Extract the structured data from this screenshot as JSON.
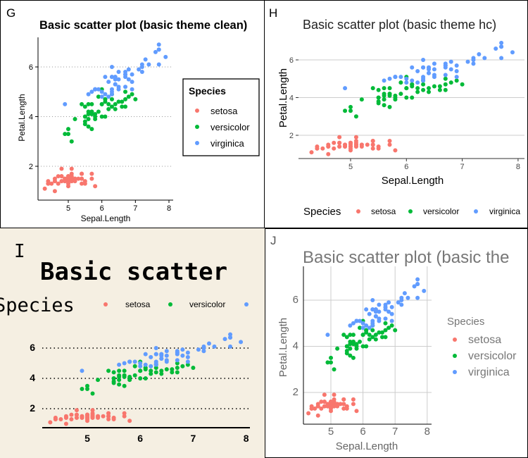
{
  "chart_data": [
    {
      "panel": "G",
      "type": "scatter",
      "title": "Basic scatter plot (basic theme clean)",
      "xlabel": "Sepal.Length",
      "ylabel": "Petal.Length",
      "xticks": [
        "5",
        "6",
        "7",
        "8"
      ],
      "yticks": [
        "2",
        "4",
        "6"
      ],
      "legend_title": "Species",
      "legend_position": "right",
      "grid": "horizontal-dotted"
    },
    {
      "panel": "H",
      "type": "scatter",
      "title": "Basic scatter plot (basic theme hc)",
      "xlabel": "Sepal.Length",
      "ylabel": "Petal.Length",
      "xticks": [
        "5",
        "6",
        "7",
        "8"
      ],
      "yticks": [
        "2",
        "4",
        "6"
      ],
      "legend_title": "Species",
      "legend_position": "bottom",
      "grid": "horizontal"
    },
    {
      "panel": "I",
      "type": "scatter",
      "title": "Basic scatter",
      "xlabel": "",
      "ylabel": "",
      "xticks": [
        "5",
        "6",
        "7",
        "8"
      ],
      "yticks": [
        "2",
        "4",
        "6"
      ],
      "legend_title": "Species",
      "legend_position": "top",
      "grid": "horizontal-dotted"
    },
    {
      "panel": "J",
      "type": "scatter",
      "title": "Basic scatter plot (basic the",
      "xlabel": "Sepal.Length",
      "ylabel": "Petal.Length",
      "xticks": [
        "5",
        "6",
        "7",
        "8"
      ],
      "yticks": [
        "2",
        "4",
        "6"
      ],
      "legend_title": "Species",
      "legend_position": "right",
      "grid": "major"
    }
  ],
  "series": [
    {
      "name": "setosa",
      "color": "#f8766d",
      "points": [
        [
          5.1,
          1.4
        ],
        [
          4.9,
          1.4
        ],
        [
          4.7,
          1.3
        ],
        [
          4.6,
          1.5
        ],
        [
          5.0,
          1.4
        ],
        [
          5.4,
          1.7
        ],
        [
          4.6,
          1.4
        ],
        [
          5.0,
          1.5
        ],
        [
          4.4,
          1.4
        ],
        [
          4.9,
          1.5
        ],
        [
          5.4,
          1.5
        ],
        [
          4.8,
          1.6
        ],
        [
          4.8,
          1.4
        ],
        [
          4.3,
          1.1
        ],
        [
          5.8,
          1.2
        ],
        [
          5.7,
          1.5
        ],
        [
          5.4,
          1.3
        ],
        [
          5.1,
          1.4
        ],
        [
          5.7,
          1.7
        ],
        [
          5.1,
          1.5
        ],
        [
          5.4,
          1.7
        ],
        [
          5.1,
          1.5
        ],
        [
          4.6,
          1.0
        ],
        [
          5.1,
          1.7
        ],
        [
          4.8,
          1.9
        ],
        [
          5.0,
          1.6
        ],
        [
          5.0,
          1.6
        ],
        [
          5.2,
          1.5
        ],
        [
          5.2,
          1.4
        ],
        [
          4.7,
          1.6
        ],
        [
          4.8,
          1.6
        ],
        [
          5.4,
          1.5
        ],
        [
          5.2,
          1.5
        ],
        [
          5.5,
          1.4
        ],
        [
          4.9,
          1.5
        ],
        [
          5.0,
          1.2
        ],
        [
          5.5,
          1.3
        ],
        [
          4.9,
          1.4
        ],
        [
          4.4,
          1.3
        ],
        [
          5.1,
          1.5
        ],
        [
          5.0,
          1.3
        ],
        [
          4.5,
          1.3
        ],
        [
          4.4,
          1.3
        ],
        [
          5.0,
          1.6
        ],
        [
          5.1,
          1.9
        ],
        [
          4.8,
          1.4
        ],
        [
          5.1,
          1.6
        ],
        [
          4.6,
          1.4
        ],
        [
          5.3,
          1.5
        ],
        [
          5.0,
          1.4
        ]
      ]
    },
    {
      "name": "versicolor",
      "color": "#00ba38",
      "points": [
        [
          7.0,
          4.7
        ],
        [
          6.4,
          4.5
        ],
        [
          6.9,
          4.9
        ],
        [
          5.5,
          4.0
        ],
        [
          6.5,
          4.6
        ],
        [
          5.7,
          4.5
        ],
        [
          6.3,
          4.7
        ],
        [
          4.9,
          3.3
        ],
        [
          6.6,
          4.6
        ],
        [
          5.2,
          3.9
        ],
        [
          5.0,
          3.5
        ],
        [
          5.9,
          4.2
        ],
        [
          6.0,
          4.0
        ],
        [
          6.1,
          4.7
        ],
        [
          5.6,
          3.6
        ],
        [
          6.7,
          4.4
        ],
        [
          5.6,
          4.5
        ],
        [
          5.8,
          4.1
        ],
        [
          6.2,
          4.5
        ],
        [
          5.6,
          3.9
        ],
        [
          5.9,
          4.8
        ],
        [
          6.1,
          4.0
        ],
        [
          6.3,
          4.9
        ],
        [
          6.1,
          4.7
        ],
        [
          6.4,
          4.3
        ],
        [
          6.6,
          4.4
        ],
        [
          6.8,
          4.8
        ],
        [
          6.7,
          5.0
        ],
        [
          6.0,
          4.5
        ],
        [
          5.7,
          3.5
        ],
        [
          5.5,
          3.8
        ],
        [
          5.5,
          3.7
        ],
        [
          5.8,
          3.9
        ],
        [
          6.0,
          5.1
        ],
        [
          5.4,
          4.5
        ],
        [
          6.0,
          4.5
        ],
        [
          6.7,
          4.7
        ],
        [
          6.3,
          4.4
        ],
        [
          5.6,
          4.1
        ],
        [
          5.5,
          4.0
        ],
        [
          5.5,
          4.4
        ],
        [
          6.1,
          4.6
        ],
        [
          5.8,
          4.0
        ],
        [
          5.0,
          3.3
        ],
        [
          5.6,
          4.2
        ],
        [
          5.7,
          4.2
        ],
        [
          5.7,
          4.2
        ],
        [
          6.2,
          4.3
        ],
        [
          5.1,
          3.0
        ],
        [
          5.7,
          4.1
        ]
      ]
    },
    {
      "name": "virginica",
      "color": "#619cff",
      "points": [
        [
          6.3,
          6.0
        ],
        [
          5.8,
          5.1
        ],
        [
          7.1,
          5.9
        ],
        [
          6.3,
          5.6
        ],
        [
          6.5,
          5.8
        ],
        [
          7.6,
          6.6
        ],
        [
          4.9,
          4.5
        ],
        [
          7.3,
          6.3
        ],
        [
          6.7,
          5.8
        ],
        [
          7.2,
          6.1
        ],
        [
          6.5,
          5.1
        ],
        [
          6.4,
          5.3
        ],
        [
          6.8,
          5.5
        ],
        [
          5.7,
          5.0
        ],
        [
          5.8,
          5.1
        ],
        [
          6.4,
          5.3
        ],
        [
          6.5,
          5.5
        ],
        [
          7.7,
          6.7
        ],
        [
          7.7,
          6.9
        ],
        [
          6.0,
          5.0
        ],
        [
          6.9,
          5.7
        ],
        [
          5.6,
          4.9
        ],
        [
          7.7,
          6.7
        ],
        [
          6.3,
          4.9
        ],
        [
          6.7,
          5.7
        ],
        [
          7.2,
          6.0
        ],
        [
          6.2,
          4.8
        ],
        [
          6.1,
          4.9
        ],
        [
          6.4,
          5.6
        ],
        [
          7.2,
          5.8
        ],
        [
          7.4,
          6.1
        ],
        [
          7.9,
          6.4
        ],
        [
          6.4,
          5.6
        ],
        [
          6.3,
          5.1
        ],
        [
          6.1,
          5.6
        ],
        [
          7.7,
          6.1
        ],
        [
          6.3,
          5.6
        ],
        [
          6.4,
          5.5
        ],
        [
          6.0,
          4.8
        ],
        [
          6.9,
          5.4
        ],
        [
          6.7,
          5.6
        ],
        [
          6.9,
          5.1
        ],
        [
          5.8,
          5.1
        ],
        [
          6.8,
          5.9
        ],
        [
          6.7,
          5.7
        ],
        [
          6.7,
          5.2
        ],
        [
          6.3,
          5.0
        ],
        [
          6.5,
          5.2
        ],
        [
          6.2,
          5.4
        ],
        [
          5.9,
          5.1
        ]
      ]
    }
  ]
}
